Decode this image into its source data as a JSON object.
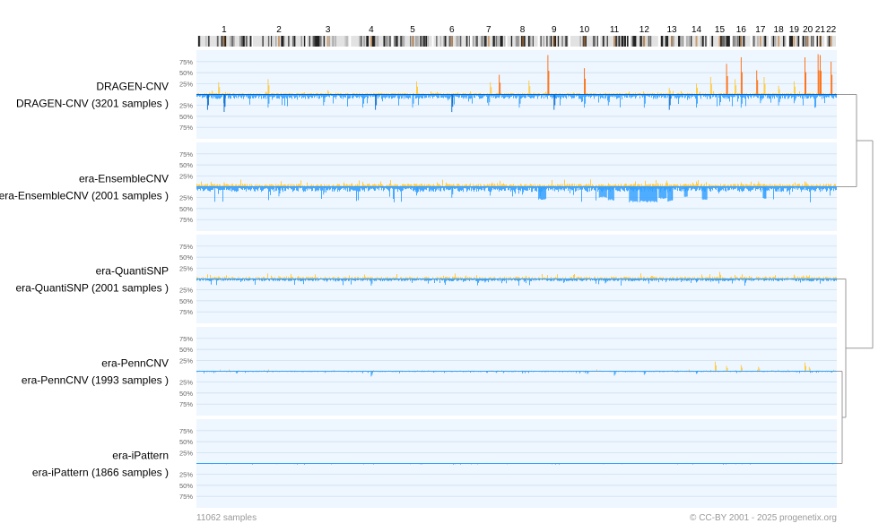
{
  "chart_data": {
    "type": "cnv_frequency_histogram",
    "title": "",
    "chromosomes": [
      "1",
      "2",
      "3",
      "4",
      "5",
      "6",
      "7",
      "8",
      "9",
      "10",
      "11",
      "12",
      "13",
      "14",
      "15",
      "16",
      "17",
      "18",
      "19",
      "20",
      "21",
      "22"
    ],
    "chromosome_sizes_mb": [
      249,
      242,
      198,
      190,
      181,
      171,
      159,
      145,
      138,
      134,
      135,
      133,
      114,
      107,
      102,
      90,
      83,
      80,
      59,
      64,
      47,
      51
    ],
    "y_tick_labels": [
      "25%",
      "50%",
      "75%"
    ],
    "y_range_pct": [
      0,
      90
    ],
    "colors": {
      "gain": "#ffc733",
      "gain_strong": "#ff6600",
      "loss": "#33a0ff",
      "loss_strong": "#0066cc",
      "panel_bg": "#eef6ff",
      "grid": "#c6dcec",
      "dendrogram": "#999999"
    },
    "series": [
      {
        "name": "DRAGEN-CNV",
        "label": "DRAGEN-CNV (3201 samples )",
        "samples": 3201,
        "gain_baseline_pct": 2,
        "loss_baseline_pct": 6,
        "gain_peaks": [
          [
            "1",
            0.4,
            28
          ],
          [
            "2",
            0.3,
            35
          ],
          [
            "3",
            0.5,
            10
          ],
          [
            "5",
            0.6,
            30
          ],
          [
            "7",
            0.55,
            28
          ],
          [
            "7",
            0.8,
            45
          ],
          [
            "8",
            0.7,
            32
          ],
          [
            "9",
            0.3,
            90
          ],
          [
            "10",
            0.5,
            60
          ],
          [
            "13",
            0.4,
            15
          ],
          [
            "14",
            0.5,
            25
          ],
          [
            "15",
            0.1,
            40
          ],
          [
            "15",
            0.8,
            70
          ],
          [
            "16",
            0.2,
            35
          ],
          [
            "16",
            0.5,
            85
          ],
          [
            "17",
            0.3,
            55
          ],
          [
            "17",
            0.7,
            40
          ],
          [
            "18",
            0.5,
            20
          ],
          [
            "19",
            0.5,
            30
          ],
          [
            "20",
            0.3,
            85
          ],
          [
            "21",
            0.3,
            92
          ],
          [
            "21",
            0.5,
            90
          ],
          [
            "22",
            0.5,
            75
          ]
        ],
        "loss_peaks": [
          [
            "1",
            0.2,
            35
          ],
          [
            "1",
            0.5,
            40
          ],
          [
            "2",
            0.3,
            30
          ],
          [
            "3",
            0.4,
            25
          ],
          [
            "4",
            0.3,
            30
          ],
          [
            "4",
            0.6,
            35
          ],
          [
            "5",
            0.5,
            30
          ],
          [
            "6",
            0.5,
            40
          ],
          [
            "7",
            0.5,
            25
          ],
          [
            "8",
            0.4,
            30
          ],
          [
            "9",
            0.5,
            35
          ],
          [
            "10",
            0.5,
            30
          ],
          [
            "11",
            0.3,
            25
          ],
          [
            "12",
            0.5,
            30
          ],
          [
            "13",
            0.4,
            35
          ],
          [
            "14",
            0.5,
            30
          ],
          [
            "15",
            0.5,
            25
          ],
          [
            "16",
            0.5,
            30
          ],
          [
            "17",
            0.5,
            20
          ],
          [
            "18",
            0.5,
            25
          ],
          [
            "19",
            0.5,
            20
          ]
        ],
        "blocks": []
      },
      {
        "name": "era-EnsembleCNV",
        "label": "era-EnsembleCNV (2001 samples )",
        "samples": 2001,
        "gain_baseline_pct": 4,
        "loss_baseline_pct": 7,
        "gain_peaks": [
          [
            "1",
            0.5,
            10
          ],
          [
            "7",
            0.6,
            10
          ],
          [
            "13",
            0.3,
            14
          ],
          [
            "14",
            0.5,
            12
          ],
          [
            "16",
            0.5,
            10
          ],
          [
            "17",
            0.4,
            12
          ],
          [
            "20",
            0.4,
            10
          ]
        ],
        "loss_peaks": [
          [
            "2",
            0.5,
            22
          ],
          [
            "3",
            0.4,
            18
          ],
          [
            "5",
            0.6,
            20
          ],
          [
            "6",
            0.5,
            25
          ],
          [
            "8",
            0.5,
            18
          ]
        ],
        "blocks": [
          [
            "9",
            0.0,
            0.25,
            30
          ],
          [
            "11",
            0.0,
            0.25,
            25
          ],
          [
            "11",
            0.3,
            0.5,
            32
          ],
          [
            "12",
            0.0,
            0.3,
            36
          ],
          [
            "12",
            0.35,
            0.95,
            36
          ],
          [
            "13",
            0.0,
            0.3,
            28
          ],
          [
            "13",
            0.35,
            0.55,
            34
          ],
          [
            "14",
            0.0,
            0.15,
            25
          ],
          [
            "14",
            0.75,
            0.95,
            30
          ],
          [
            "17",
            0.65,
            0.8,
            28
          ]
        ]
      },
      {
        "name": "era-QuantiSNP",
        "label": "era-QuantiSNP (2001 samples )",
        "samples": 2001,
        "gain_baseline_pct": 3,
        "loss_baseline_pct": 3,
        "gain_peaks": [
          [
            "1",
            0.4,
            6
          ],
          [
            "2",
            0.5,
            7
          ],
          [
            "15",
            0.5,
            16
          ],
          [
            "19",
            0.5,
            10
          ],
          [
            "20",
            0.2,
            8
          ]
        ],
        "loss_peaks": [
          [
            "4",
            0.5,
            15
          ],
          [
            "7",
            0.4,
            8
          ],
          [
            "11",
            0.2,
            10
          ],
          [
            "14",
            0.5,
            8
          ]
        ],
        "blocks": []
      },
      {
        "name": "era-PennCNV",
        "label": "era-PennCNV (1993 samples )",
        "samples": 1993,
        "gain_baseline_pct": 1,
        "loss_baseline_pct": 1,
        "gain_peaks": [
          [
            "15",
            0.3,
            22
          ],
          [
            "15",
            0.8,
            12
          ],
          [
            "16",
            0.5,
            14
          ],
          [
            "17",
            0.4,
            10
          ],
          [
            "20",
            0.3,
            20
          ],
          [
            "20",
            0.6,
            10
          ]
        ],
        "loss_peaks": [
          [
            "4",
            0.5,
            12
          ],
          [
            "10",
            0.6,
            6
          ],
          [
            "11",
            0.5,
            10
          ],
          [
            "12",
            0.5,
            8
          ],
          [
            "14",
            0.5,
            6
          ]
        ],
        "blocks": []
      },
      {
        "name": "era-iPattern",
        "label": "era-iPattern (1866 samples )",
        "samples": 1866,
        "gain_baseline_pct": 0.3,
        "loss_baseline_pct": 0.5,
        "gain_peaks": [],
        "loss_peaks": [],
        "blocks": []
      }
    ],
    "dendrogram": "((DRAGEN-CNV,era-EnsembleCNV),(era-QuantiSNP,(era-PennCNV,era-iPattern)))"
  },
  "footer": {
    "left": "11062 samples",
    "right": "© CC-BY 2001 - 2025 progenetix.org"
  }
}
